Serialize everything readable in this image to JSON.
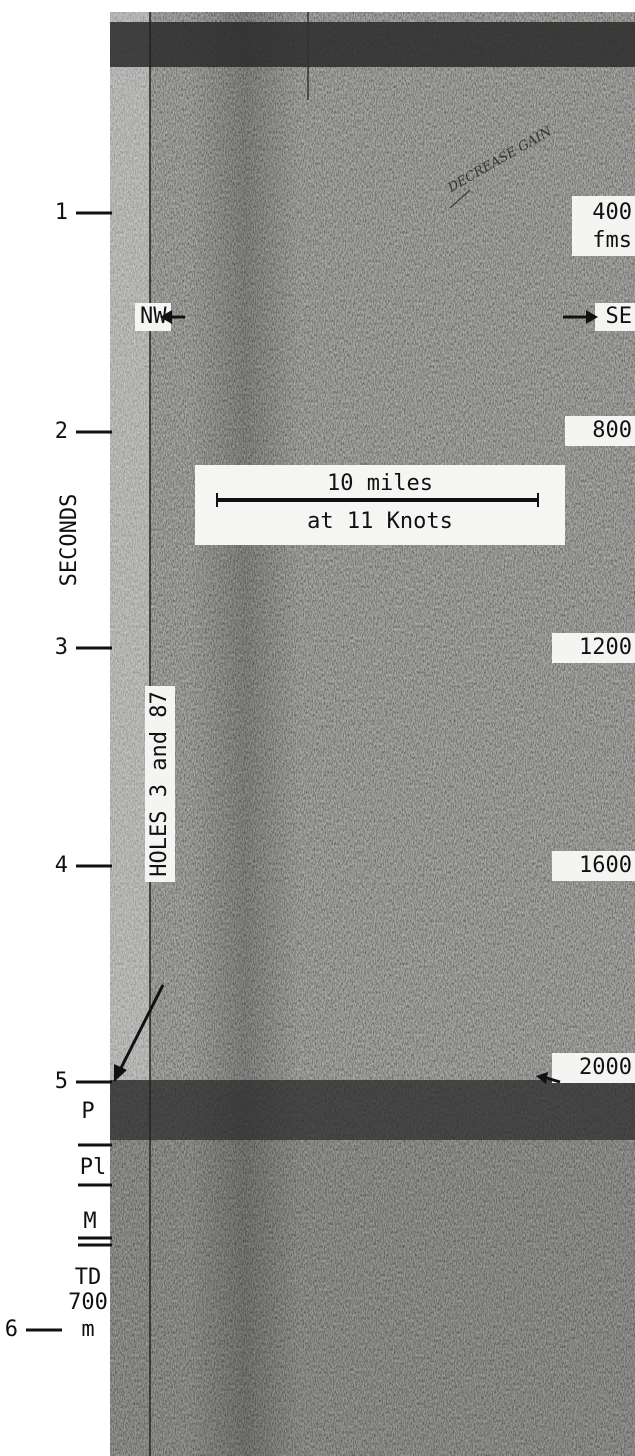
{
  "axis": {
    "title": "SECONDS",
    "seconds": [
      "1",
      "2",
      "3",
      "4",
      "5",
      "6"
    ],
    "depths": [
      "400",
      "800",
      "1200",
      "1600",
      "2000"
    ],
    "depth_unit": "fms"
  },
  "directions": [
    "NW",
    "SE"
  ],
  "scale": {
    "distance": "10 miles",
    "speed": "at 11 Knots"
  },
  "holes_label": "HOLES 3 and 87",
  "annotation": "DECREASE GAIN",
  "stratigraphy": [
    "P",
    "Pl",
    "M",
    "TD"
  ],
  "total_depth": {
    "value": "700",
    "unit": "m"
  }
}
